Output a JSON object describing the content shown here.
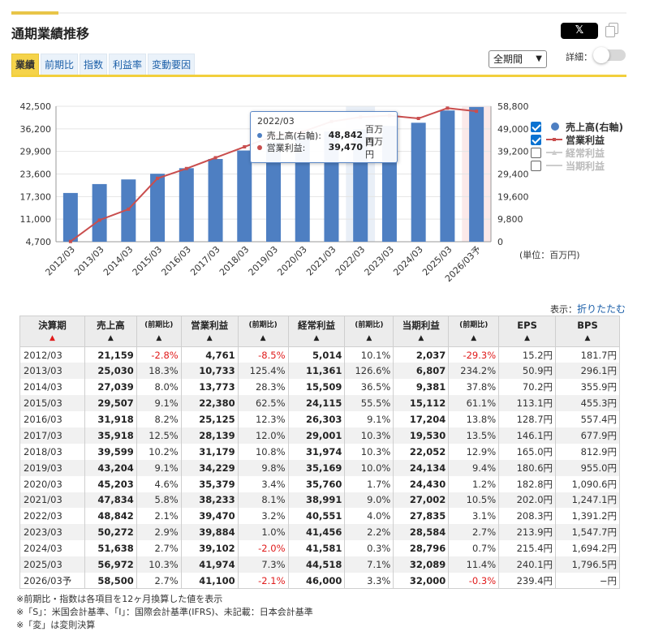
{
  "header": {
    "title": "通期業績推移",
    "x_button": "𝕏"
  },
  "tabs": [
    {
      "label": "業績",
      "active": true
    },
    {
      "label": "前期比",
      "active": false
    },
    {
      "label": "指数",
      "active": false
    },
    {
      "label": "利益率",
      "active": false
    },
    {
      "label": "変動要因",
      "active": false
    }
  ],
  "controls": {
    "period_select": "全期間",
    "detail_label": "詳細："
  },
  "colors": {
    "bar": "#4e7fc2",
    "line": "#c94e4e",
    "highlight": "#e9eff7",
    "forecast": "#fbe9e9"
  },
  "chart_data": {
    "type": "bar+line",
    "categories": [
      "2012/03",
      "2013/03",
      "2014/03",
      "2015/03",
      "2016/03",
      "2017/03",
      "2018/03",
      "2019/03",
      "2020/03",
      "2021/03",
      "2022/03",
      "2023/03",
      "2024/03",
      "2025/03",
      "2026/03予"
    ],
    "left_axis": {
      "ticks": [
        "42,500",
        "36,200",
        "29,900",
        "23,600",
        "17,300",
        "11,000",
        "4,700"
      ],
      "min": 4700,
      "max": 42500
    },
    "right_axis": {
      "ticks": [
        "58,800",
        "49,000",
        "39,200",
        "29,400",
        "19,600",
        "9,800",
        "0"
      ],
      "min": 0,
      "max": 58800
    },
    "series": [
      {
        "name": "売上高(右軸)",
        "type": "bar",
        "axis": "right",
        "values": [
          21159,
          25030,
          27039,
          29507,
          31918,
          35918,
          39599,
          43204,
          45203,
          47834,
          48842,
          50272,
          51638,
          56972,
          58500
        ]
      },
      {
        "name": "営業利益",
        "type": "line",
        "axis": "left",
        "values": [
          4761,
          10733,
          13773,
          22380,
          25125,
          28139,
          31179,
          34229,
          35379,
          38233,
          39470,
          39884,
          39102,
          41974,
          41100
        ]
      }
    ],
    "legend": [
      {
        "name": "売上高(右軸)",
        "checked": true,
        "enabled": true
      },
      {
        "name": "営業利益",
        "checked": true,
        "enabled": true
      },
      {
        "name": "経常利益",
        "checked": false,
        "enabled": false
      },
      {
        "name": "当期利益",
        "checked": false,
        "enabled": false
      }
    ],
    "highlight_index": 10,
    "forecast_index": 14,
    "unit_note": "(単位：百万円)",
    "tooltip": {
      "date": "2022/03",
      "rows": [
        {
          "name": "売上高(右軸):",
          "value": "48,842",
          "unit": "百万円"
        },
        {
          "name": "営業利益:",
          "value": "39,470",
          "unit": "百万円"
        }
      ]
    }
  },
  "table": {
    "display_label": "表示：",
    "collapse_link": "折りたたむ",
    "headers": [
      {
        "label": "決算期",
        "arrow": "▲",
        "red": true
      },
      {
        "label": "売上高",
        "arrow": "▲"
      },
      {
        "label": "(前期比)",
        "arrow": "▲",
        "sub": true
      },
      {
        "label": "営業利益",
        "arrow": "▲"
      },
      {
        "label": "(前期比)",
        "arrow": "▲",
        "sub": true
      },
      {
        "label": "経常利益",
        "arrow": "▲"
      },
      {
        "label": "(前期比)",
        "arrow": "▲",
        "sub": true
      },
      {
        "label": "当期利益",
        "arrow": "▲"
      },
      {
        "label": "(前期比)",
        "arrow": "▲",
        "sub": true
      },
      {
        "label": "EPS",
        "arrow": "▲"
      },
      {
        "label": "BPS",
        "arrow": "▲"
      }
    ],
    "rows": [
      [
        "2012/03",
        "21,159",
        "-2.8%",
        "4,761",
        "-8.5%",
        "5,014",
        "10.1%",
        "2,037",
        "-29.3%",
        "15.2円",
        "181.7円"
      ],
      [
        "2013/03",
        "25,030",
        "18.3%",
        "10,733",
        "125.4%",
        "11,361",
        "126.6%",
        "6,807",
        "234.2%",
        "50.9円",
        "296.1円"
      ],
      [
        "2014/03",
        "27,039",
        "8.0%",
        "13,773",
        "28.3%",
        "15,509",
        "36.5%",
        "9,381",
        "37.8%",
        "70.2円",
        "355.9円"
      ],
      [
        "2015/03",
        "29,507",
        "9.1%",
        "22,380",
        "62.5%",
        "24,115",
        "55.5%",
        "15,112",
        "61.1%",
        "113.1円",
        "455.3円"
      ],
      [
        "2016/03",
        "31,918",
        "8.2%",
        "25,125",
        "12.3%",
        "26,303",
        "9.1%",
        "17,204",
        "13.8%",
        "128.7円",
        "557.4円"
      ],
      [
        "2017/03",
        "35,918",
        "12.5%",
        "28,139",
        "12.0%",
        "29,001",
        "10.3%",
        "19,530",
        "13.5%",
        "146.1円",
        "677.9円"
      ],
      [
        "2018/03",
        "39,599",
        "10.2%",
        "31,179",
        "10.8%",
        "31,974",
        "10.3%",
        "22,052",
        "12.9%",
        "165.0円",
        "812.9円"
      ],
      [
        "2019/03",
        "43,204",
        "9.1%",
        "34,229",
        "9.8%",
        "35,169",
        "10.0%",
        "24,134",
        "9.4%",
        "180.6円",
        "955.0円"
      ],
      [
        "2020/03",
        "45,203",
        "4.6%",
        "35,379",
        "3.4%",
        "35,760",
        "1.7%",
        "24,430",
        "1.2%",
        "182.8円",
        "1,090.6円"
      ],
      [
        "2021/03",
        "47,834",
        "5.8%",
        "38,233",
        "8.1%",
        "38,991",
        "9.0%",
        "27,002",
        "10.5%",
        "202.0円",
        "1,247.1円"
      ],
      [
        "2022/03",
        "48,842",
        "2.1%",
        "39,470",
        "3.2%",
        "40,551",
        "4.0%",
        "27,835",
        "3.1%",
        "208.3円",
        "1,391.2円"
      ],
      [
        "2023/03",
        "50,272",
        "2.9%",
        "39,884",
        "1.0%",
        "41,456",
        "2.2%",
        "28,584",
        "2.7%",
        "213.9円",
        "1,547.7円"
      ],
      [
        "2024/03",
        "51,638",
        "2.7%",
        "39,102",
        "-2.0%",
        "41,581",
        "0.3%",
        "28,796",
        "0.7%",
        "215.4円",
        "1,694.2円"
      ],
      [
        "2025/03",
        "56,972",
        "10.3%",
        "41,974",
        "7.3%",
        "44,518",
        "7.1%",
        "32,089",
        "11.4%",
        "240.1円",
        "1,796.5円"
      ],
      [
        "2026/03予",
        "58,500",
        "2.7%",
        "41,100",
        "-2.1%",
        "46,000",
        "3.3%",
        "32,000",
        "-0.3%",
        "239.4円",
        "−円"
      ]
    ]
  },
  "notes": [
    "※前期比・指数は各項目を12ヶ月換算した値を表示",
    "※「S」：米国会計基準、「I」：国際会計基準(IFRS)、未記載：日本会計基準",
    "※「変」は変則決算"
  ]
}
